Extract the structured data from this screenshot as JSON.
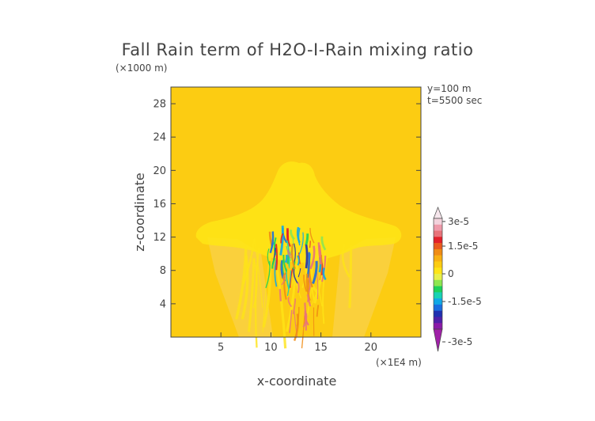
{
  "chart_data": {
    "type": "heatmap",
    "title": "Fall Rain term of H2O-I-Rain mixing ratio",
    "y_scale_label": "(×1000 m)",
    "x_scale_label": "(×1E4 m)",
    "xlabel": "x-coordinate",
    "ylabel": "z-coordinate",
    "annotations": [
      "y=100 m",
      "t=5500 sec"
    ],
    "x_ticks": [
      5,
      10,
      15,
      20
    ],
    "y_ticks": [
      4,
      8,
      12,
      16,
      20,
      24,
      28
    ],
    "xlim": [
      0,
      25
    ],
    "ylim": [
      0,
      30
    ],
    "background_value": 0,
    "colorbar": {
      "labels": [
        {
          "text": "3e-5",
          "value": 3e-05
        },
        {
          "text": "1.5e-5",
          "value": 1.5e-05
        },
        {
          "text": "0",
          "value": 0
        },
        {
          "text": "-1.5e-5",
          "value": -1.5e-05
        },
        {
          "text": "-3e-5",
          "value": -3e-05
        }
      ],
      "levels_desc": [
        {
          "c": "#f2d2dc"
        },
        {
          "c": "#ee9aaa"
        },
        {
          "c": "#e8737a"
        },
        {
          "c": "#e3202a"
        },
        {
          "c": "#ea5a1e"
        },
        {
          "c": "#f08c14"
        },
        {
          "c": "#f8b012"
        },
        {
          "c": "#fccc12"
        },
        {
          "c": "#fee416"
        },
        {
          "c": "#e8f04a"
        },
        {
          "c": "#8ee650"
        },
        {
          "c": "#1ed25a"
        },
        {
          "c": "#18d2b4"
        },
        {
          "c": "#10a8e6"
        },
        {
          "c": "#1a6ee0"
        },
        {
          "c": "#2030b0"
        },
        {
          "c": "#5020a8"
        },
        {
          "c": "#8a1aa8"
        }
      ],
      "top_triangle_color": "#f6e6ec",
      "bottom_triangle_color": "#a020a8"
    },
    "colors": {
      "background": "#fccc12",
      "light_positive": "#fee416",
      "pale_envelope": "#f8d45e",
      "frame": "#444444"
    }
  }
}
